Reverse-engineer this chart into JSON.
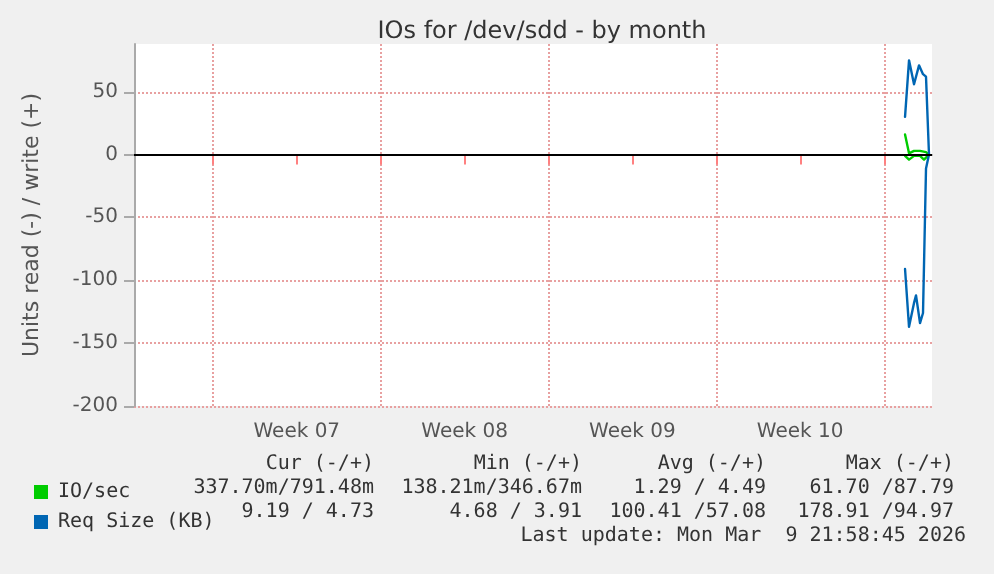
{
  "chart_data": {
    "type": "line",
    "title": "IOs for /dev/sdd - by month",
    "ylabel": "Units read (-) / write (+)",
    "xlim": [
      "2026-02-04T17:00",
      "2026-03-10T00:00"
    ],
    "ylim": [
      -200,
      88
    ],
    "xticks": [
      {
        "value": "2026-02-08",
        "label": null
      },
      {
        "value": "2026-02-11T12:00",
        "label": "Week 07"
      },
      {
        "value": "2026-02-15",
        "label": null
      },
      {
        "value": "2026-02-18T12:00",
        "label": "Week 08"
      },
      {
        "value": "2026-02-22",
        "label": null
      },
      {
        "value": "2026-02-25T12:00",
        "label": "Week 09"
      },
      {
        "value": "2026-03-01",
        "label": null
      },
      {
        "value": "2026-03-04T12:00",
        "label": "Week 10"
      },
      {
        "value": "2026-03-08",
        "label": null
      }
    ],
    "yticks": [
      -200,
      -150,
      -100,
      -50,
      0,
      50
    ],
    "grid": true,
    "legend": "bottom left",
    "series": [
      {
        "name": "IO/sec",
        "color": "#00cc00",
        "x": [
          "2026-03-08T21:00",
          "2026-03-09T01:00",
          "2026-03-09T06:00",
          "2026-03-09T12:00",
          "2026-03-09T18:00",
          "2026-03-09T21:00",
          null,
          "2026-03-08T21:00",
          "2026-03-09T01:00",
          "2026-03-09T06:00",
          "2026-03-09T12:00",
          "2026-03-09T16:00",
          "2026-03-09T21:00"
        ],
        "values": [
          16,
          1,
          3,
          3,
          2,
          0,
          null,
          -1,
          -4,
          -1,
          -1,
          -4,
          0
        ]
      },
      {
        "name": "Req Size (KB)",
        "color": "#0066b3",
        "x": [
          "2026-03-08T21:00",
          "2026-03-09T01:00",
          "2026-03-09T06:00",
          "2026-03-09T11:00",
          "2026-03-09T15:00",
          "2026-03-09T18:00",
          "2026-03-09T21:00",
          null,
          "2026-03-08T21:00",
          "2026-03-09T01:00",
          "2026-03-09T06:00",
          "2026-03-09T08:00",
          "2026-03-09T12:00",
          "2026-03-09T15:00",
          "2026-03-09T18:00",
          "2026-03-09T21:00"
        ],
        "values": [
          30,
          75,
          56,
          71,
          64,
          62,
          0,
          null,
          -91,
          -137,
          -118,
          -112,
          -134,
          -126,
          -11,
          0
        ]
      }
    ],
    "ref_lines": [
      {
        "axis": "y",
        "value": 0,
        "color": "#000000"
      }
    ],
    "annotations": [
      "Cur (-/+)",
      "Min (-/+)",
      "Avg (-/+)",
      "Max (-/+)",
      "337.70m/791.48m",
      "138.21m/346.67m",
      "1.29 / 4.49",
      "61.70 /87.79",
      "9.19 / 4.73",
      "4.68 / 3.91",
      "100.41 /57.08",
      "178.91 /94.97",
      "Last update: Mon Mar  9 21:58:45 2026"
    ]
  }
}
